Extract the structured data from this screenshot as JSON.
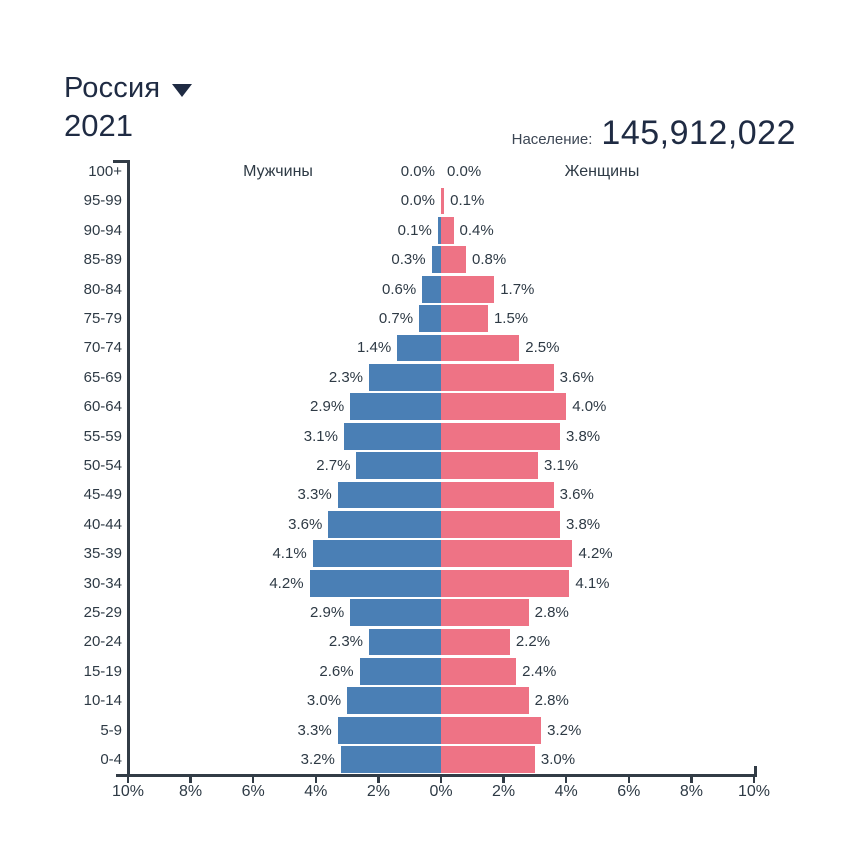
{
  "header": {
    "country": "Россия",
    "year": "2021",
    "population_label": "Население:",
    "population_value": "145,912,022"
  },
  "chart_data": {
    "type": "bar",
    "subtype": "population-pyramid",
    "title": "Россия 2021",
    "legend": {
      "male": "Мужчины",
      "female": "Женщины"
    },
    "age_groups": [
      "100+",
      "95-99",
      "90-94",
      "85-89",
      "80-84",
      "75-79",
      "70-74",
      "65-69",
      "60-64",
      "55-59",
      "50-54",
      "45-49",
      "40-44",
      "35-39",
      "30-34",
      "25-29",
      "20-24",
      "15-19",
      "10-14",
      "5-9",
      "0-4"
    ],
    "series": [
      {
        "name": "Мужчины",
        "side": "left",
        "color": "#4a7fb5",
        "values_pct": [
          0.0,
          0.0,
          0.1,
          0.3,
          0.6,
          0.7,
          1.4,
          2.3,
          2.9,
          3.1,
          2.7,
          3.3,
          3.6,
          4.1,
          4.2,
          2.9,
          2.3,
          2.6,
          3.0,
          3.3,
          3.2
        ]
      },
      {
        "name": "Женщины",
        "side": "right",
        "color": "#ee7385",
        "values_pct": [
          0.0,
          0.1,
          0.4,
          0.8,
          1.7,
          1.5,
          2.5,
          3.6,
          4.0,
          3.8,
          3.1,
          3.6,
          3.8,
          4.2,
          4.1,
          2.8,
          2.2,
          2.4,
          2.8,
          3.2,
          3.0
        ]
      }
    ],
    "x_axis": {
      "ticks": [
        "10%",
        "8%",
        "6%",
        "4%",
        "2%",
        "0%",
        "2%",
        "4%",
        "6%",
        "8%",
        "10%"
      ],
      "max_pct": 10,
      "grid": false
    },
    "colors": {
      "male": "#4a7fb5",
      "female": "#ee7385",
      "axis": "#323c46",
      "text": "#2e3a45",
      "title": "#1f2b43"
    }
  }
}
